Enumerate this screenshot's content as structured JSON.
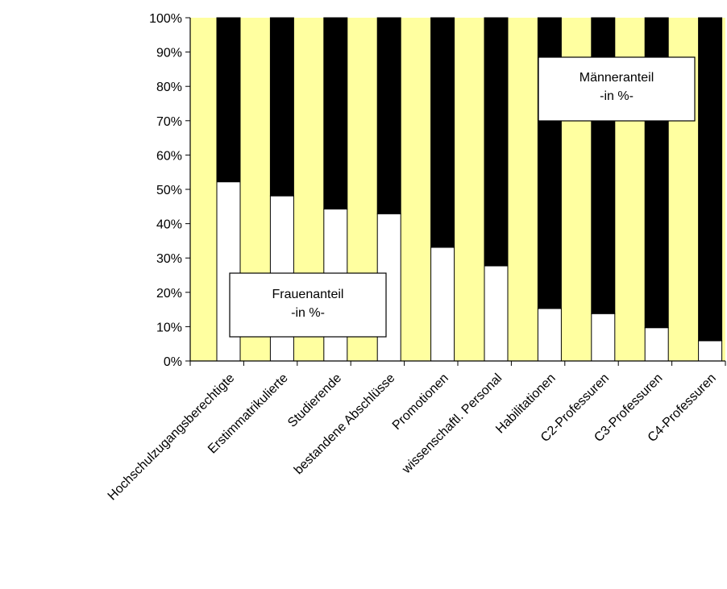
{
  "chart_data": {
    "type": "bar",
    "stacked": true,
    "categories": [
      "Hochschulzugangsberechtigte",
      "Erstimmatrikulierte",
      "Studierende",
      "bestandene Abschlüsse",
      "Promotionen",
      "wissenschaftl. Personal",
      "Habilitationen",
      "C2-Professuren",
      "C3-Professuren",
      "C4-Professuren"
    ],
    "series": [
      {
        "name": "Frauenanteil",
        "color": "#ffffff",
        "values": [
          52.2,
          48.1,
          44.3,
          42.9,
          33.1,
          27.7,
          15.3,
          13.8,
          9.7,
          5.9
        ]
      },
      {
        "name": "Männeranteil",
        "color": "#000000",
        "values": [
          47.8,
          51.9,
          55.7,
          57.1,
          66.9,
          72.3,
          84.7,
          86.2,
          90.3,
          94.1
        ]
      }
    ],
    "ylim": [
      0,
      100
    ],
    "yticks": [
      "0%",
      "10%",
      "20%",
      "30%",
      "40%",
      "50%",
      "60%",
      "70%",
      "80%",
      "90%",
      "100%"
    ],
    "plot_background": "#ffffa0",
    "annotations": [
      {
        "lines": [
          "Frauenanteil",
          "-in %-"
        ]
      },
      {
        "lines": [
          "Männeranteil",
          "-in %-"
        ]
      }
    ]
  }
}
